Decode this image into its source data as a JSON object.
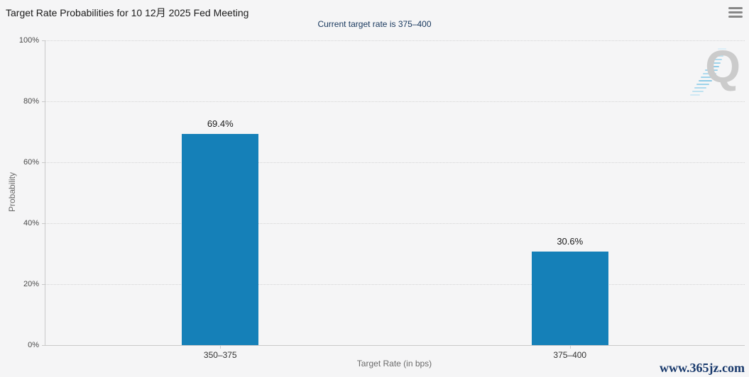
{
  "header": {
    "title": "Target Rate Probabilities for 10 12月 2025 Fed Meeting",
    "subtitle": "Current target rate is 375–400"
  },
  "menu": {
    "icon": "hamburger-menu-icon"
  },
  "chart_data": {
    "type": "bar",
    "title": "Target Rate Probabilities for 10 12月 2025 Fed Meeting",
    "subtitle": "Current target rate is 375–400",
    "categories": [
      "350–375",
      "375–400"
    ],
    "values": [
      69.4,
      30.6
    ],
    "value_labels": [
      "69.4%",
      "30.6%"
    ],
    "xlabel": "Target Rate (in bps)",
    "ylabel": "Probability",
    "ylim": [
      0,
      100
    ],
    "yticks": [
      0,
      20,
      40,
      60,
      80,
      100
    ],
    "ytick_labels": [
      "0%",
      "20%",
      "40%",
      "60%",
      "80%",
      "100%"
    ],
    "grid": "dotted-horizontal",
    "legend_position": "none",
    "bar_color": "#1580B8"
  },
  "watermarks": {
    "logo_letter": "Q",
    "site": "www.365jz.com"
  },
  "colors": {
    "background": "#f5f5f6",
    "bar": "#1580B8",
    "title": "#1b1b1b",
    "subtitle": "#16365c",
    "axis_line": "#c9c9c9",
    "grid": "#d4d4d4",
    "tick_label": "#4a4a4a",
    "axis_title": "#6b6b6b",
    "site_watermark": "#17386b"
  }
}
